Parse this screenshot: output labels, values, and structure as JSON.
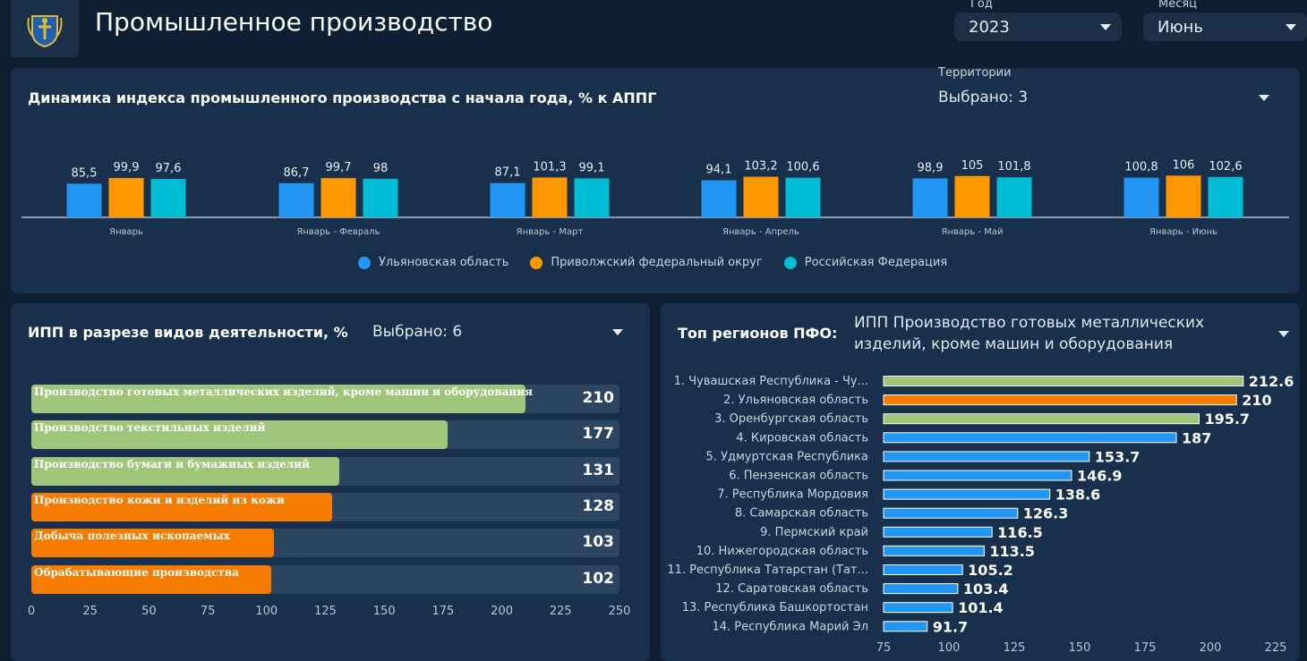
{
  "header": {
    "title": "Промышленное производство",
    "year_label": "Год",
    "year_value": "2023",
    "month_label": "Месяц",
    "month_value": "Июнь"
  },
  "top_panel": {
    "title": "Динамика индекса промышленного производства с начала года, % к АППГ",
    "territories_label": "Территории",
    "territories_value": "Выбрано: 3"
  },
  "left_panel": {
    "title": "ИПП в разрезе видов деятельности, %",
    "select_value": "Выбрано: 6"
  },
  "right_panel": {
    "title": "Топ регионов ПФО:",
    "select_value": "ИПП Производство готовых металлических изделий, кроме машин и оборудования"
  },
  "colors": {
    "ulyanovsk": "#2196f3",
    "pfo": "#ff9800",
    "rf": "#00bcd4",
    "green": "#9fc57a",
    "orange": "#f57c00",
    "blue": "#2196f3"
  },
  "chart_data": [
    {
      "type": "bar",
      "title": "Динамика индекса промышленного производства с начала года, % к АППГ",
      "categories": [
        "Январь",
        "Январь - Февраль",
        "Январь - Март",
        "Январь - Апрель",
        "Январь - Май",
        "Январь - Июнь"
      ],
      "series": [
        {
          "name": "Ульяновская область",
          "values": [
            85.5,
            86.7,
            87.1,
            94.1,
            98.9,
            100.8
          ],
          "labels": [
            "85,5",
            "86,7",
            "87,1",
            "94,1",
            "98,9",
            "100,8"
          ]
        },
        {
          "name": "Приволжский федеральный округ",
          "values": [
            99.9,
            99.7,
            101.3,
            103.2,
            105,
            106
          ],
          "labels": [
            "99,9",
            "99,7",
            "101,3",
            "103,2",
            "105",
            "106"
          ]
        },
        {
          "name": "Российская Федерация",
          "values": [
            97.6,
            98,
            99.1,
            100.6,
            101.8,
            102.6
          ],
          "labels": [
            "97,6",
            "98",
            "99,1",
            "100,6",
            "101,8",
            "102,6"
          ]
        }
      ],
      "legend": "bottom"
    },
    {
      "type": "bar",
      "orientation": "horizontal",
      "title": "ИПП в разрезе видов деятельности, %",
      "categories": [
        "Производство готовых металлических изделий, кроме машин и оборудования",
        "Производство текстильных изделий",
        "Производство бумаги и бумажных изделий",
        "Производство кожи и изделий из кожи",
        "Добыча полезных ископаемых",
        "Обрабатывающие производства"
      ],
      "values": [
        210,
        177,
        131,
        128,
        103,
        102
      ],
      "value_labels": [
        "210",
        "177",
        "131",
        "128",
        "103",
        "102"
      ],
      "colors": [
        "green",
        "green",
        "green",
        "orange",
        "orange",
        "orange"
      ],
      "xlim": [
        0,
        250
      ],
      "ticks": [
        "0",
        "25",
        "50",
        "75",
        "100",
        "125",
        "150",
        "175",
        "200",
        "225",
        "250"
      ],
      "tick_values": [
        0,
        25,
        50,
        75,
        100,
        125,
        150,
        175,
        200,
        225,
        250
      ]
    },
    {
      "type": "bar",
      "orientation": "horizontal",
      "title": "Топ регионов ПФО",
      "categories": [
        "1. Чувашская Республика - Чу...",
        "2. Ульяновская область",
        "3. Оренбургская область",
        "4. Кировская область",
        "5. Удмуртская Республика",
        "6. Пензенская область",
        "7. Республика Мордовия",
        "8. Самарская область",
        "9. Пермский край",
        "10. Нижегородская область",
        "11. Республика Татарстан (Тат...",
        "12. Саратовская область",
        "13. Республика Башкортостан",
        "14. Республика Марий Эл"
      ],
      "values": [
        212.6,
        210,
        195.7,
        187,
        153.7,
        146.9,
        138.6,
        126.3,
        116.5,
        113.5,
        105.2,
        103.4,
        101.4,
        91.7
      ],
      "value_labels": [
        "212.6",
        "210",
        "195.7",
        "187",
        "153.7",
        "146.9",
        "138.6",
        "126.3",
        "116.5",
        "113.5",
        "105.2",
        "103.4",
        "101.4",
        "91.7"
      ],
      "colors": [
        "green",
        "orange",
        "green",
        "blue",
        "blue",
        "blue",
        "blue",
        "blue",
        "blue",
        "blue",
        "blue",
        "blue",
        "blue",
        "blue"
      ],
      "xlim": [
        75,
        225
      ],
      "ticks": [
        "75",
        "100",
        "125",
        "150",
        "175",
        "200",
        "225"
      ],
      "tick_values": [
        75,
        100,
        125,
        150,
        175,
        200,
        225
      ]
    }
  ]
}
